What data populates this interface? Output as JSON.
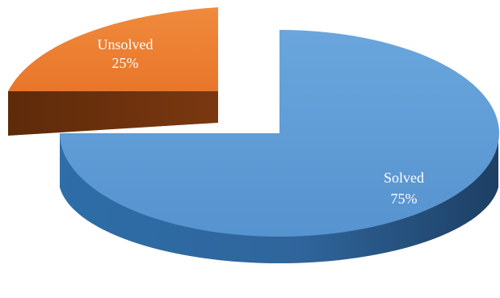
{
  "chart_data": {
    "type": "pie",
    "style": "3d-exploded",
    "slices": [
      {
        "label": "Solved",
        "percent_label": "75%",
        "value": 75,
        "color": "#5b9bd5"
      },
      {
        "label": "Unsolved",
        "percent_label": "25%",
        "value": 25,
        "color": "#ed7d31"
      }
    ]
  }
}
